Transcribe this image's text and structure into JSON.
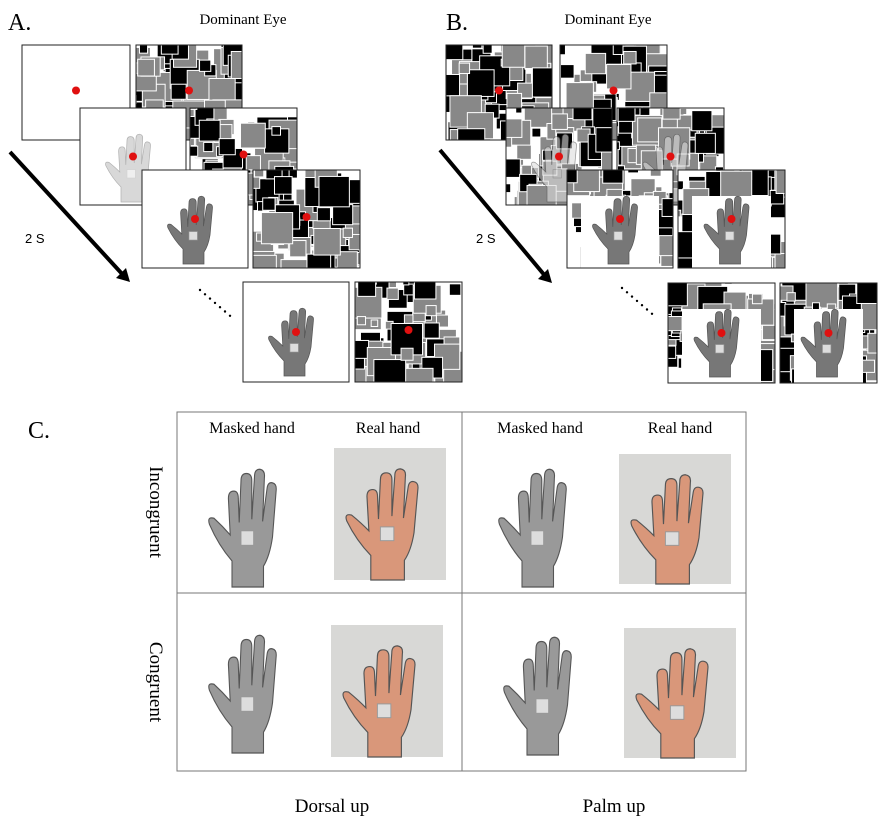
{
  "panels": [
    {
      "label": "A.",
      "eye_label": "Dominant Eye",
      "duration": "2 S"
    },
    {
      "label": "B.",
      "eye_label": "Dominant Eye",
      "duration": "2 S"
    }
  ],
  "panel_c": {
    "label": "C.",
    "columns": [
      {
        "group": "Dorsal up",
        "headers": [
          "Masked hand",
          "Real hand"
        ]
      },
      {
        "group": "Palm up",
        "headers": [
          "Masked hand",
          "Real hand"
        ]
      }
    ],
    "rows": [
      "Incongruent",
      "Congruent"
    ]
  }
}
